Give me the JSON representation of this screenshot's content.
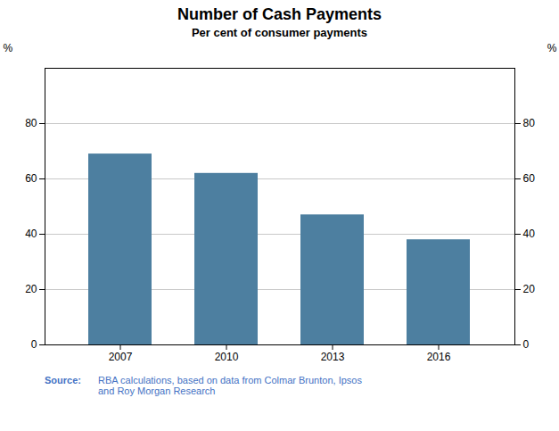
{
  "chart_data": {
    "type": "bar",
    "title": "Number of Cash Payments",
    "subtitle": "Per cent of consumer payments",
    "categories": [
      "2007",
      "2010",
      "2013",
      "2016"
    ],
    "values": [
      69,
      62,
      47,
      38
    ],
    "color": "#4d7fa0",
    "ylim": [
      0,
      100
    ],
    "yticks": [
      0,
      20,
      40,
      60,
      80
    ],
    "ylabel": "%",
    "y2lim": [
      0,
      100
    ],
    "y2ticks": [
      0,
      20,
      40,
      60,
      80
    ],
    "y2label": "%",
    "grid": true,
    "source_label": "Source:",
    "source_lines": [
      "RBA calculations, based on data from Colmar Brunton, Ipsos",
      "and Roy Morgan Research"
    ]
  }
}
